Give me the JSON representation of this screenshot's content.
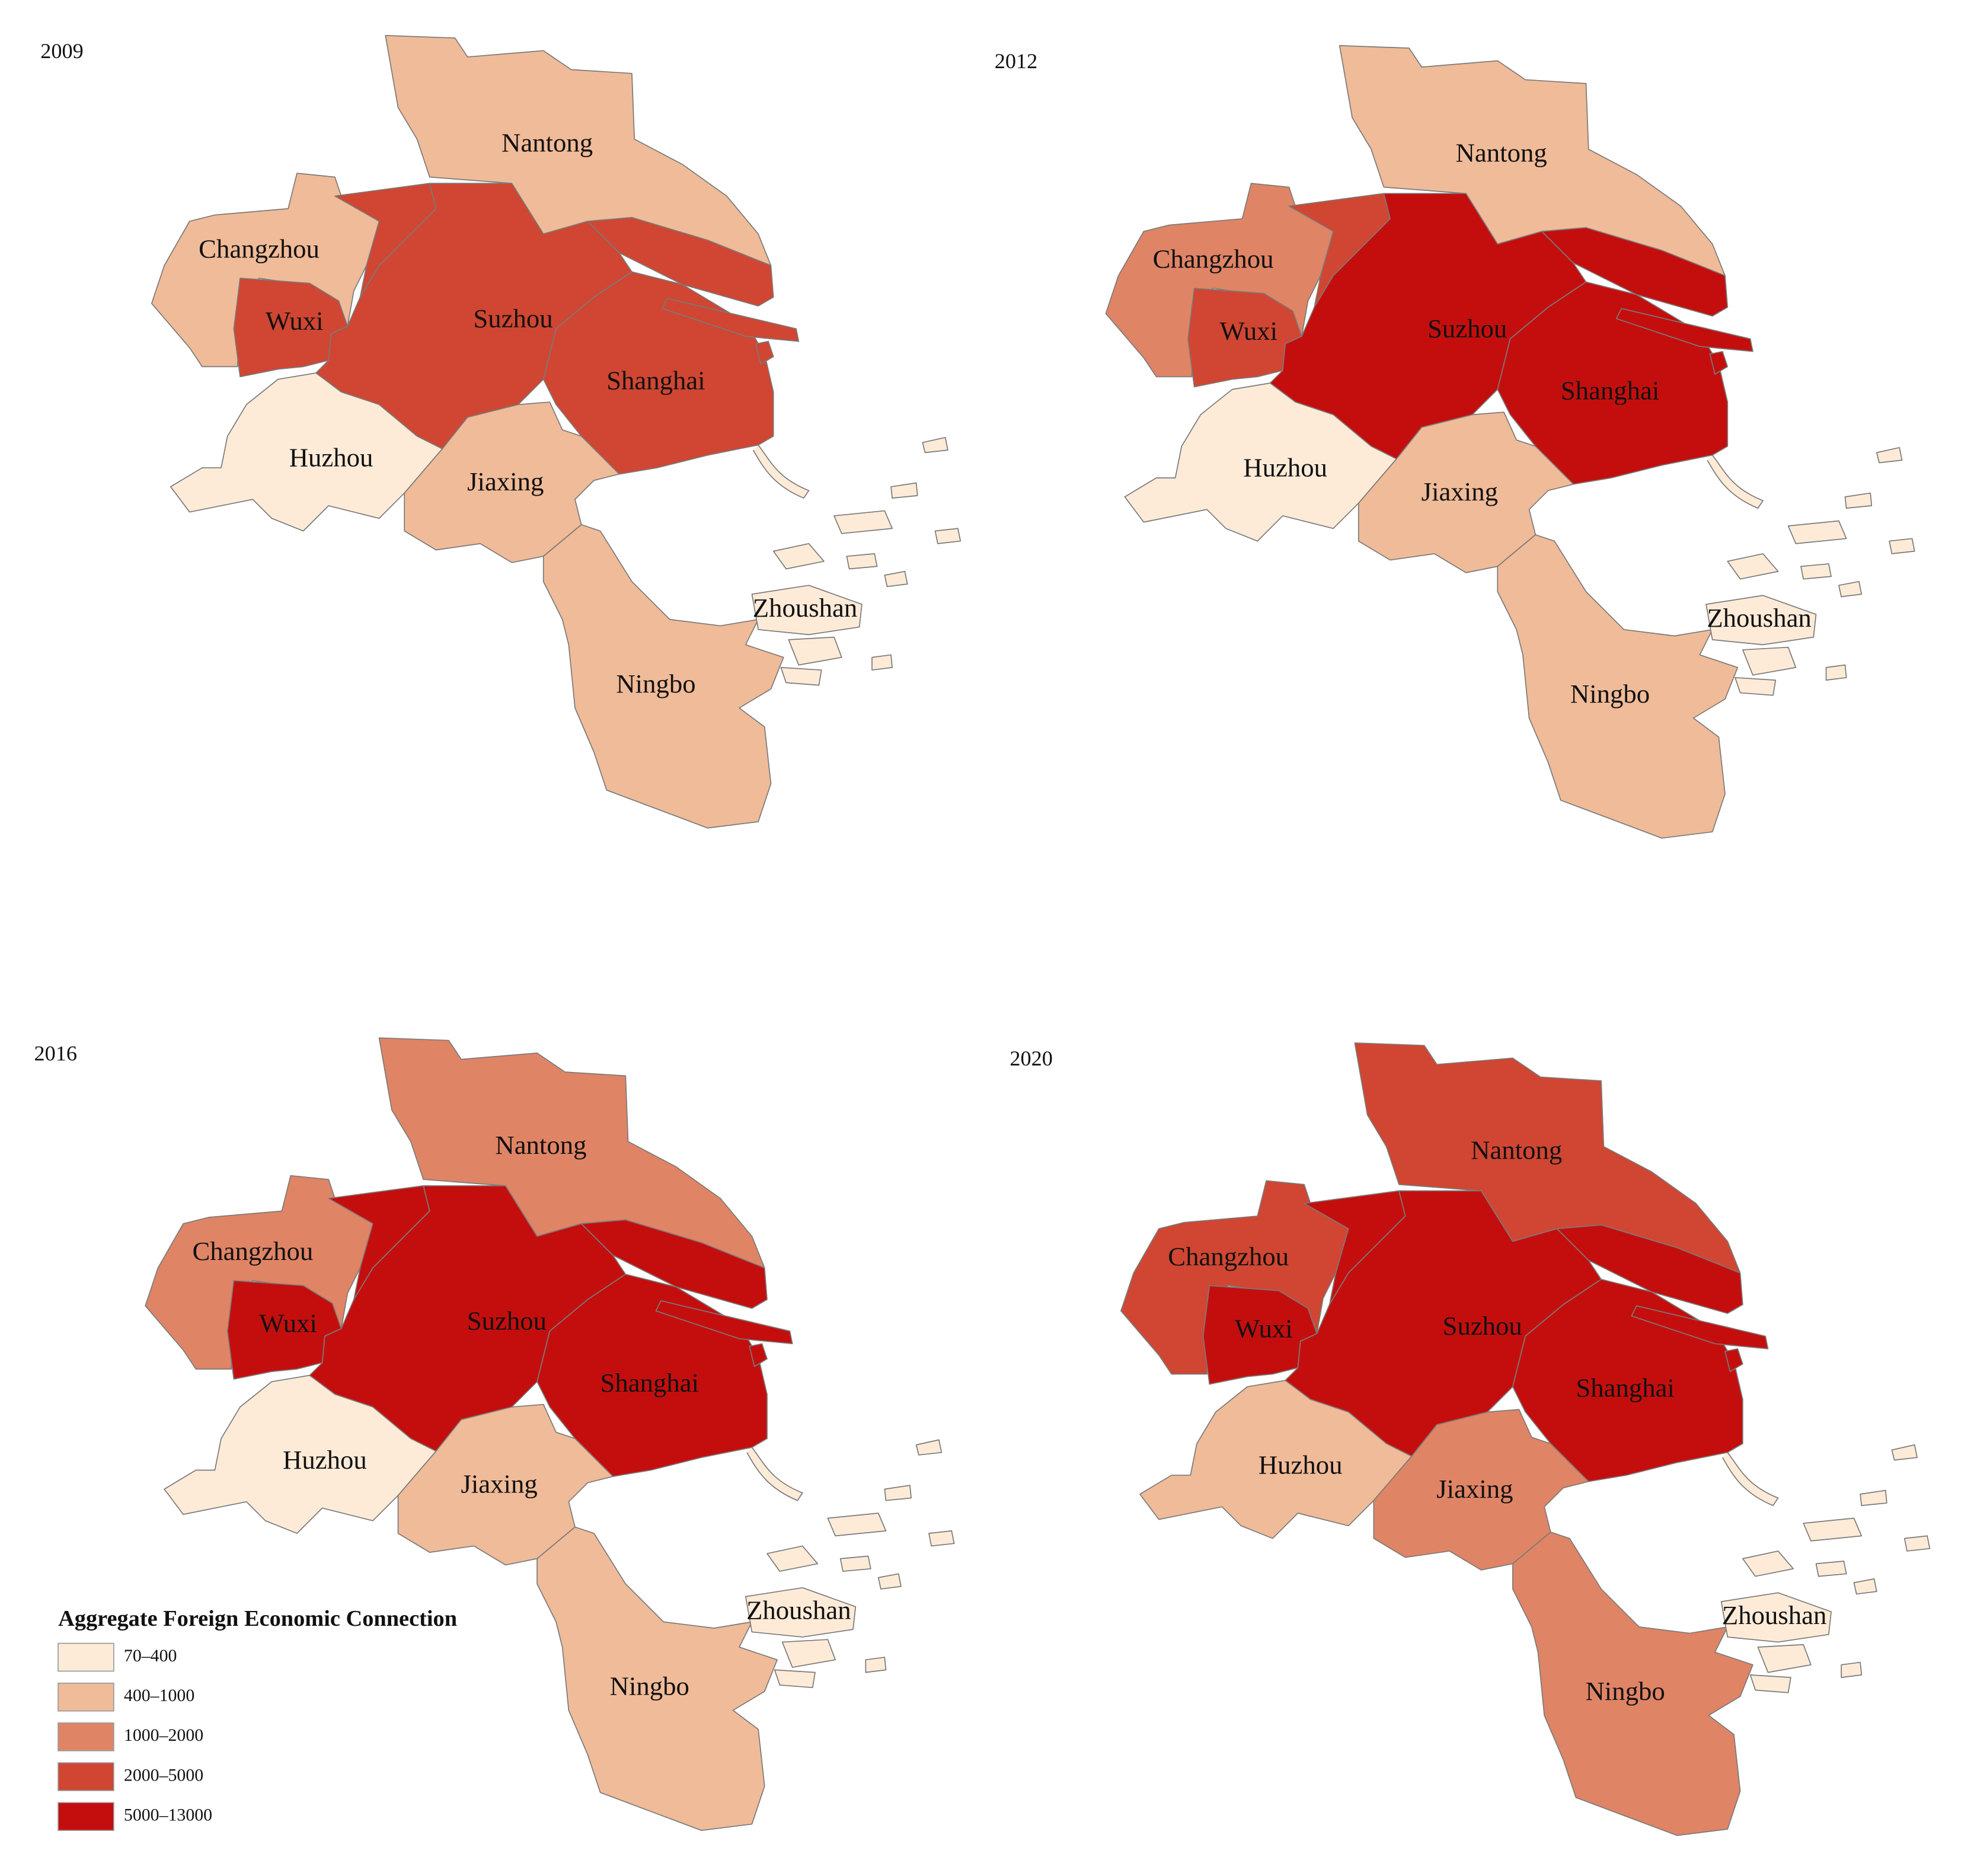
{
  "legend": {
    "title": "Aggregate Foreign Economic Connection",
    "classes": [
      {
        "label": "70–400",
        "color": "#fdebd8"
      },
      {
        "label": "400–1000",
        "color": "#f0bb98"
      },
      {
        "label": "1000–2000",
        "color": "#e08466"
      },
      {
        "label": "2000–5000",
        "color": "#d04632"
      },
      {
        "label": "5000–13000",
        "color": "#c40e0e"
      }
    ]
  },
  "maps": [
    {
      "title": "2009",
      "regions": [
        {
          "name": "Nantong",
          "color": "#f0bb98"
        },
        {
          "name": "Changzhou",
          "color": "#f0bb98"
        },
        {
          "name": "Wuxi",
          "color": "#d04632"
        },
        {
          "name": "Suzhou",
          "color": "#d04632"
        },
        {
          "name": "Shanghai",
          "color": "#d04632"
        },
        {
          "name": "Huzhou",
          "color": "#fdebd8"
        },
        {
          "name": "Jiaxing",
          "color": "#f0bb98"
        },
        {
          "name": "Ningbo",
          "color": "#f0bb98"
        },
        {
          "name": "Zhoushan",
          "color": "#fdebd8"
        }
      ]
    },
    {
      "title": "2012",
      "regions": [
        {
          "name": "Nantong",
          "color": "#f0bb98"
        },
        {
          "name": "Changzhou",
          "color": "#e08466"
        },
        {
          "name": "Wuxi",
          "color": "#d04632"
        },
        {
          "name": "Suzhou",
          "color": "#c40e0e"
        },
        {
          "name": "Shanghai",
          "color": "#c40e0e"
        },
        {
          "name": "Huzhou",
          "color": "#fdebd8"
        },
        {
          "name": "Jiaxing",
          "color": "#f0bb98"
        },
        {
          "name": "Ningbo",
          "color": "#f0bb98"
        },
        {
          "name": "Zhoushan",
          "color": "#fdebd8"
        }
      ]
    },
    {
      "title": "2016",
      "regions": [
        {
          "name": "Nantong",
          "color": "#e08466"
        },
        {
          "name": "Changzhou",
          "color": "#e08466"
        },
        {
          "name": "Wuxi",
          "color": "#c40e0e"
        },
        {
          "name": "Suzhou",
          "color": "#c40e0e"
        },
        {
          "name": "Shanghai",
          "color": "#c40e0e"
        },
        {
          "name": "Huzhou",
          "color": "#fdebd8"
        },
        {
          "name": "Jiaxing",
          "color": "#f0bb98"
        },
        {
          "name": "Ningbo",
          "color": "#f0bb98"
        },
        {
          "name": "Zhoushan",
          "color": "#fdebd8"
        }
      ]
    },
    {
      "title": "2020",
      "regions": [
        {
          "name": "Nantong",
          "color": "#d04632"
        },
        {
          "name": "Changzhou",
          "color": "#d04632"
        },
        {
          "name": "Wuxi",
          "color": "#c40e0e"
        },
        {
          "name": "Suzhou",
          "color": "#c40e0e"
        },
        {
          "name": "Shanghai",
          "color": "#c40e0e"
        },
        {
          "name": "Huzhou",
          "color": "#f0bb98"
        },
        {
          "name": "Jiaxing",
          "color": "#e08466"
        },
        {
          "name": "Ningbo",
          "color": "#e08466"
        },
        {
          "name": "Zhoushan",
          "color": "#fdebd8"
        }
      ]
    }
  ]
}
